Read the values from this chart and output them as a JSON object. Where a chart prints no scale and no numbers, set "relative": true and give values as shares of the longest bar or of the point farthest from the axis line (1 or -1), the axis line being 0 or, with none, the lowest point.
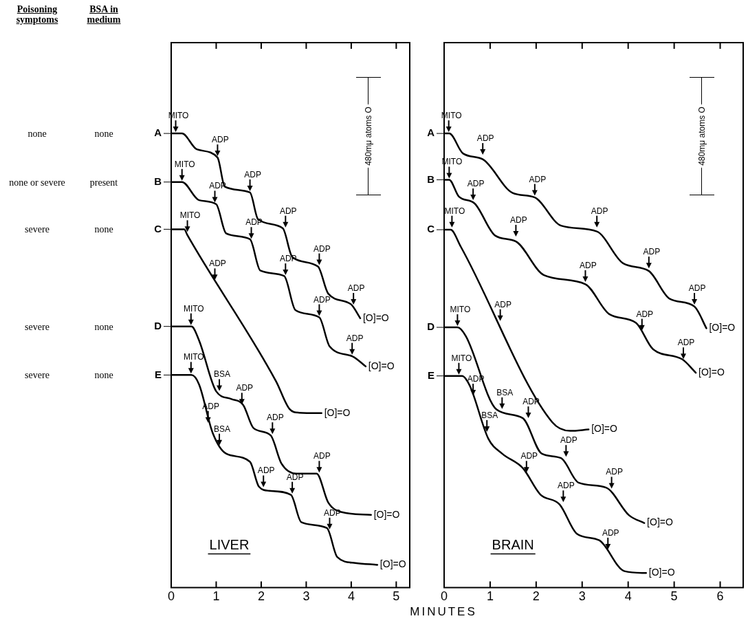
{
  "chart_data": [
    {
      "type": "other",
      "annotations": [
        "Poisoning symptoms",
        "BSA in medium",
        "none",
        "none",
        "none or severe",
        "present",
        "severe",
        "none",
        "severe",
        "none",
        "severe",
        "none"
      ]
    },
    {
      "type": "line",
      "xlabel": "MINUTES",
      "relative": true,
      "legend": "left",
      "marker": "none",
      "xlim": [
        0,
        5.3
      ],
      "xticks": [
        0,
        1,
        2,
        3,
        4,
        5
      ],
      "series": [
        {
          "name": "A",
          "color": "#000000",
          "x": [
            0,
            0.24,
            0.57,
            1.03,
            1.19,
            1.75,
            1.93,
            2.48,
            2.69,
            3.26,
            3.49,
            3.99,
            4.2
          ],
          "values": [
            1,
            1,
            0.965,
            0.947,
            0.883,
            0.87,
            0.811,
            0.791,
            0.728,
            0.707,
            0.647,
            0.624,
            0.593
          ]
        },
        {
          "name": "B",
          "color": "#000000",
          "x": [
            0,
            0.24,
            0.62,
            1,
            1.22,
            1.75,
            1.98,
            2.51,
            2.76,
            3.29,
            3.52,
            4.03,
            4.32
          ],
          "values": [
            0.893,
            0.893,
            0.853,
            0.844,
            0.78,
            0.767,
            0.698,
            0.686,
            0.611,
            0.595,
            0.531,
            0.509,
            0.487
          ]
        },
        {
          "name": "C",
          "color": "#000000",
          "x": [
            0,
            0.29,
            0.36,
            2.33,
            2.63,
            2.84,
            3.34
          ],
          "values": [
            0.789,
            0.789,
            0.776,
            0.454,
            0.393,
            0.385,
            0.384
          ]
        },
        {
          "name": "D",
          "color": "#000000",
          "x": [
            0,
            0.45,
            0.62,
            1,
            1.34,
            1.6,
            1.83,
            2.21,
            2.45,
            2.78,
            3.23,
            3.49,
            3.79,
            4.44
          ],
          "values": [
            0.575,
            0.575,
            0.544,
            0.432,
            0.415,
            0.402,
            0.351,
            0.335,
            0.273,
            0.251,
            0.251,
            0.187,
            0.166,
            0.16
          ]
        },
        {
          "name": "E",
          "color": "#000000",
          "x": [
            0,
            0.45,
            0.62,
            0.92,
            1.22,
            1.75,
            1.95,
            2.18,
            2.66,
            2.89,
            3.46,
            3.69,
            4.09,
            4.58
          ],
          "values": [
            0.468,
            0.468,
            0.447,
            0.341,
            0.295,
            0.277,
            0.222,
            0.213,
            0.204,
            0.144,
            0.131,
            0.067,
            0.054,
            0.05
          ]
        }
      ],
      "annotations": [
        "LIVER",
        "480mμ atoms O",
        {
          "text": "MITO",
          "x": 0.1,
          "y": 1
        },
        {
          "text": "ADP",
          "x": 1.03,
          "y": 0.947
        },
        {
          "text": "ADP",
          "x": 1.75,
          "y": 0.87
        },
        {
          "text": "ADP",
          "x": 2.54,
          "y": 0.79
        },
        {
          "text": "ADP",
          "x": 3.29,
          "y": 0.707
        },
        {
          "text": "ADP",
          "x": 4.05,
          "y": 0.62
        },
        {
          "text": "MITO",
          "x": 0.24,
          "y": 0.893
        },
        {
          "text": "ADP",
          "x": 0.97,
          "y": 0.845
        },
        {
          "text": "ADP",
          "x": 1.78,
          "y": 0.765
        },
        {
          "text": "ADP",
          "x": 2.54,
          "y": 0.685
        },
        {
          "text": "ADP",
          "x": 3.29,
          "y": 0.595
        },
        {
          "text": "ADP",
          "x": 4.02,
          "y": 0.51
        },
        {
          "text": "MITO",
          "x": 0.36,
          "y": 0.78
        },
        {
          "text": "ADP",
          "x": 0.97,
          "y": 0.674
        },
        {
          "text": "MITO",
          "x": 0.44,
          "y": 0.575
        },
        {
          "text": "BSA",
          "x": 1.07,
          "y": 0.43
        },
        {
          "text": "ADP",
          "x": 1.57,
          "y": 0.4
        },
        {
          "text": "ADP",
          "x": 2.25,
          "y": 0.335
        },
        {
          "text": "ADP",
          "x": 3.29,
          "y": 0.25
        },
        {
          "text": "MITO",
          "x": 0.44,
          "y": 0.468
        },
        {
          "text": "ADP",
          "x": 0.82,
          "y": 0.36
        },
        {
          "text": "BSA",
          "x": 1.07,
          "y": 0.31
        },
        {
          "text": "ADP",
          "x": 2.05,
          "y": 0.218
        },
        {
          "text": "ADP",
          "x": 2.69,
          "y": 0.204
        },
        {
          "text": "ADP",
          "x": 3.52,
          "y": 0.125
        },
        {
          "text": "[O]=O",
          "x": 4.2,
          "y": 0.593
        },
        {
          "text": "[O]=O",
          "x": 4.32,
          "y": 0.487
        },
        {
          "text": "[O]=O",
          "x": 3.34,
          "y": 0.384
        },
        {
          "text": "[O]=O",
          "x": 4.44,
          "y": 0.16
        },
        {
          "text": "[O]=O",
          "x": 4.58,
          "y": 0.05
        }
      ]
    },
    {
      "type": "line",
      "relative": true,
      "legend": "left",
      "marker": "none",
      "xlim": [
        0,
        6.5
      ],
      "xticks": [
        0,
        1,
        2,
        3,
        4,
        5,
        6
      ],
      "series": [
        {
          "name": "A",
          "color": "#000000",
          "x": [
            0,
            0.11,
            0.41,
            0.84,
            1.49,
            1.97,
            2.54,
            3.32,
            3.89,
            4.45,
            4.9,
            5.44,
            5.7
          ],
          "values": [
            1,
            1,
            0.956,
            0.943,
            0.869,
            0.859,
            0.797,
            0.784,
            0.714,
            0.697,
            0.636,
            0.619,
            0.571
          ]
        },
        {
          "name": "B",
          "color": "#000000",
          "x": [
            0,
            0.11,
            0.32,
            0.66,
            1.11,
            1.56,
            2.17,
            3.07,
            3.59,
            4.17,
            4.54,
            5.17,
            5.47
          ],
          "values": [
            0.898,
            0.898,
            0.861,
            0.846,
            0.775,
            0.762,
            0.688,
            0.668,
            0.602,
            0.583,
            0.525,
            0.503,
            0.473
          ]
        },
        {
          "name": "C",
          "color": "#000000",
          "x": [
            0,
            0.14,
            0.36,
            2.35,
            2.74,
            3.14
          ],
          "values": [
            0.788,
            0.788,
            0.751,
            0.364,
            0.345,
            0.348
          ]
        },
        {
          "name": "D",
          "color": "#000000",
          "x": [
            0,
            0.29,
            0.47,
            1.14,
            1.71,
            2.12,
            2.54,
            2.92,
            3.52,
            4.02,
            4.35
          ],
          "values": [
            0.573,
            0.573,
            0.554,
            0.392,
            0.373,
            0.295,
            0.285,
            0.231,
            0.22,
            0.159,
            0.142
          ]
        },
        {
          "name": "E",
          "color": "#000000",
          "x": [
            0,
            0.39,
            0.56,
            0.96,
            1.26,
            1.71,
            2.09,
            2.51,
            2.89,
            3.37,
            3.92,
            4.39
          ],
          "values": [
            0.466,
            0.466,
            0.444,
            0.328,
            0.295,
            0.263,
            0.205,
            0.183,
            0.118,
            0.104,
            0.036,
            0.032
          ]
        }
      ],
      "annotations": [
        "BRAIN",
        "480mμ atoms O",
        {
          "text": "MITO",
          "x": 0.1,
          "y": 1
        },
        {
          "text": "ADP",
          "x": 0.84,
          "y": 0.95
        },
        {
          "text": "ADP",
          "x": 1.97,
          "y": 0.86
        },
        {
          "text": "ADP",
          "x": 3.32,
          "y": 0.79
        },
        {
          "text": "ADP",
          "x": 4.45,
          "y": 0.7
        },
        {
          "text": "ADP",
          "x": 5.44,
          "y": 0.62
        },
        {
          "text": "MITO",
          "x": 0.11,
          "y": 0.898
        },
        {
          "text": "ADP",
          "x": 0.63,
          "y": 0.85
        },
        {
          "text": "ADP",
          "x": 1.56,
          "y": 0.77
        },
        {
          "text": "ADP",
          "x": 3.07,
          "y": 0.67
        },
        {
          "text": "ADP",
          "x": 4.3,
          "y": 0.563
        },
        {
          "text": "ADP",
          "x": 5.2,
          "y": 0.5
        },
        {
          "text": "MITO",
          "x": 0.17,
          "y": 0.79
        },
        {
          "text": "ADP",
          "x": 1.22,
          "y": 0.584
        },
        {
          "text": "MITO",
          "x": 0.29,
          "y": 0.573
        },
        {
          "text": "BSA",
          "x": 1.26,
          "y": 0.39
        },
        {
          "text": "ADP",
          "x": 1.83,
          "y": 0.37
        },
        {
          "text": "ADP",
          "x": 2.65,
          "y": 0.285
        },
        {
          "text": "ADP",
          "x": 3.64,
          "y": 0.215
        },
        {
          "text": "MITO",
          "x": 0.32,
          "y": 0.466
        },
        {
          "text": "ADP",
          "x": 0.63,
          "y": 0.42
        },
        {
          "text": "BSA",
          "x": 0.93,
          "y": 0.34
        },
        {
          "text": "ADP",
          "x": 1.79,
          "y": 0.25
        },
        {
          "text": "ADP",
          "x": 2.59,
          "y": 0.185
        },
        {
          "text": "ADP",
          "x": 3.56,
          "y": 0.081
        },
        {
          "text": "[O]=O",
          "x": 5.7,
          "y": 0.571
        },
        {
          "text": "[O]=O",
          "x": 5.47,
          "y": 0.473
        },
        {
          "text": "[O]=O",
          "x": 3.14,
          "y": 0.348
        },
        {
          "text": "[O]=O",
          "x": 4.35,
          "y": 0.142
        },
        {
          "text": "[O]=O",
          "x": 4.39,
          "y": 0.032
        }
      ]
    }
  ]
}
